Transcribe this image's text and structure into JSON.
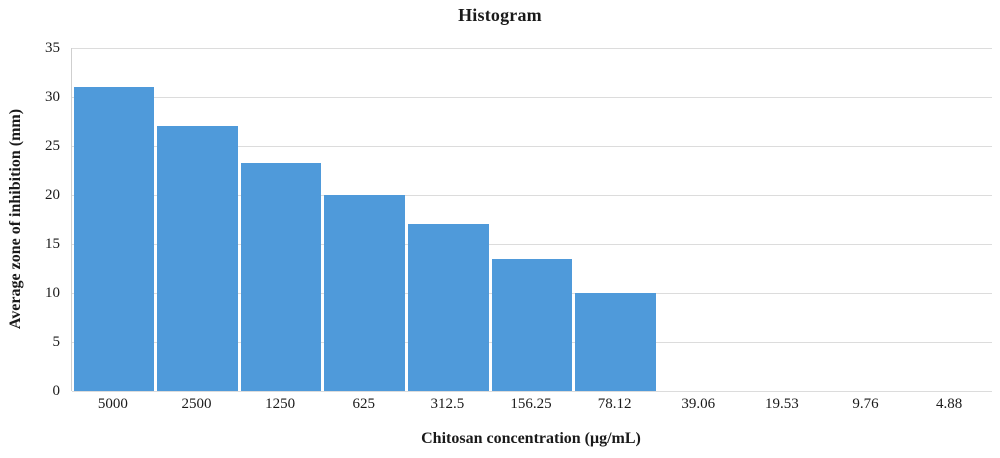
{
  "chart_data": {
    "type": "bar",
    "title": "Histogram",
    "xlabel": "Chitosan concentration (μg/mL)",
    "ylabel": "Average zone of inhibition (mm)",
    "categories": [
      "5000",
      "2500",
      "1250",
      "625",
      "312.5",
      "156.25",
      "78.12",
      "39.06",
      "19.53",
      "9.76",
      "4.88"
    ],
    "values": [
      31,
      27,
      23.3,
      20,
      17,
      13.5,
      10,
      0,
      0,
      0,
      0
    ],
    "ylim": [
      0,
      35
    ],
    "yticks": [
      0,
      5,
      10,
      15,
      20,
      25,
      30,
      35
    ],
    "grid": true,
    "legend": "none",
    "colors": {
      "bar": "#4f9ada",
      "gridline": "#dcdcdc",
      "axis_line": "#cfcfcf",
      "text": "#1a1a1a",
      "background": "#ffffff"
    }
  }
}
